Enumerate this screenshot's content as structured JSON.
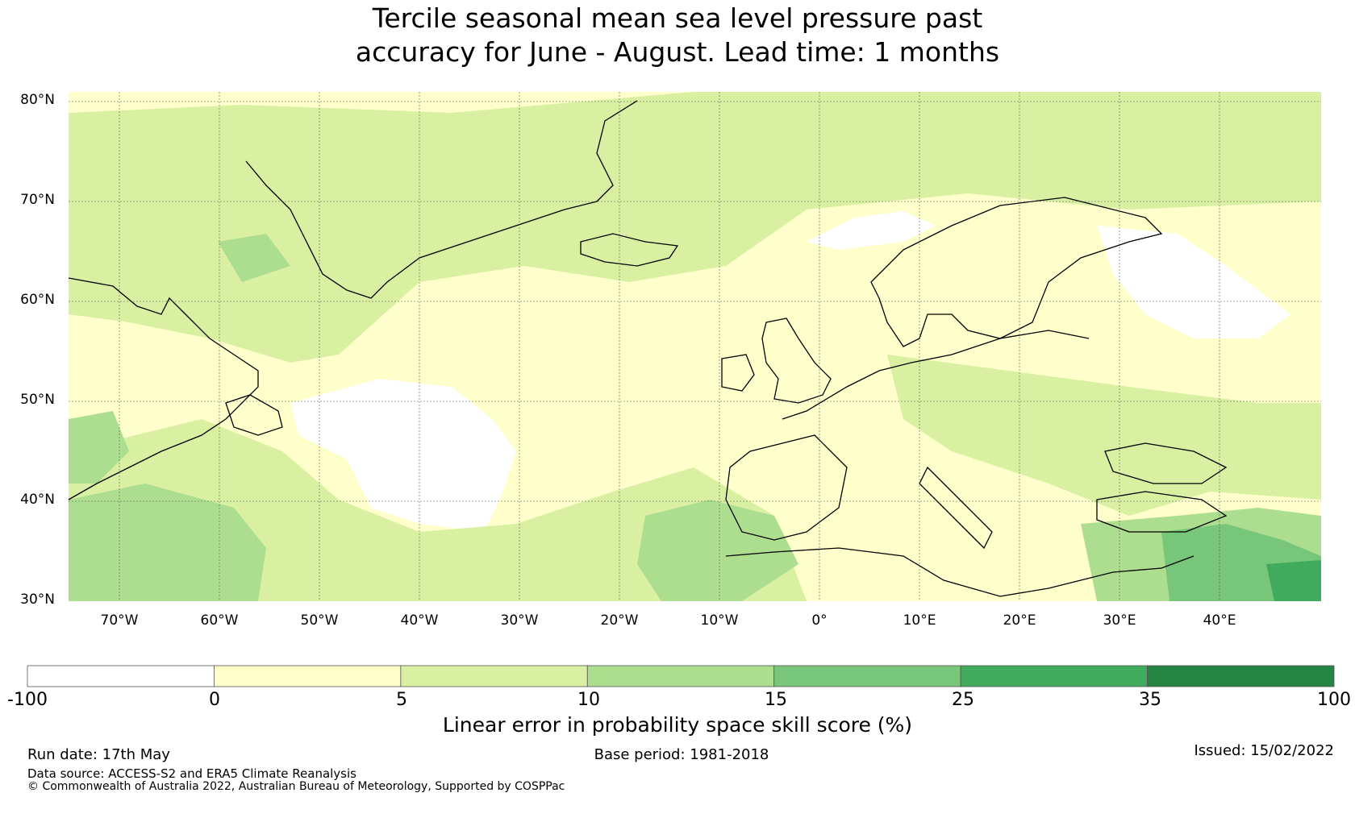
{
  "title": {
    "line1": "Tercile seasonal mean sea level pressure past",
    "line2": "accuracy for June - August. Lead time: 1 months"
  },
  "map": {
    "region": "North Atlantic and Europe",
    "lat_labels": [
      "80°N",
      "70°N",
      "60°N",
      "50°N",
      "40°N",
      "30°N"
    ],
    "lon_labels": [
      "70°W",
      "60°W",
      "50°W",
      "40°W",
      "30°W",
      "20°W",
      "10°W",
      "0°",
      "10°E",
      "20°E",
      "30°E",
      "40°E"
    ],
    "lon_range": [
      -75,
      50
    ],
    "lat_range": [
      30,
      81
    ],
    "gridlines": true,
    "coastlines": true
  },
  "colorbar": {
    "title": "Linear error in probability space skill score (%)",
    "tick_labels": [
      "-100",
      "0",
      "5",
      "10",
      "15",
      "25",
      "35",
      "100"
    ],
    "bins": [
      {
        "from": -100,
        "to": 0,
        "color": "#ffffff"
      },
      {
        "from": 0,
        "to": 5,
        "color": "#ffffcc"
      },
      {
        "from": 5,
        "to": 10,
        "color": "#d9f0a3"
      },
      {
        "from": 10,
        "to": 15,
        "color": "#addd8e"
      },
      {
        "from": 15,
        "to": 25,
        "color": "#78c679"
      },
      {
        "from": 25,
        "to": 35,
        "color": "#41ab5d"
      },
      {
        "from": 35,
        "to": 100,
        "color": "#238443"
      }
    ]
  },
  "footer": {
    "run_date": "Run date: 17th May",
    "base_period": "Base period: 1981-2018",
    "issued": "Issued: 15/02/2022",
    "data_source": "Data source: ACCESS-S2 and ERA5 Climate Reanalysis",
    "copyright": "© Commonwealth of Australia 2022, Australian Bureau of Meteorology, Supported by COSPPac"
  }
}
